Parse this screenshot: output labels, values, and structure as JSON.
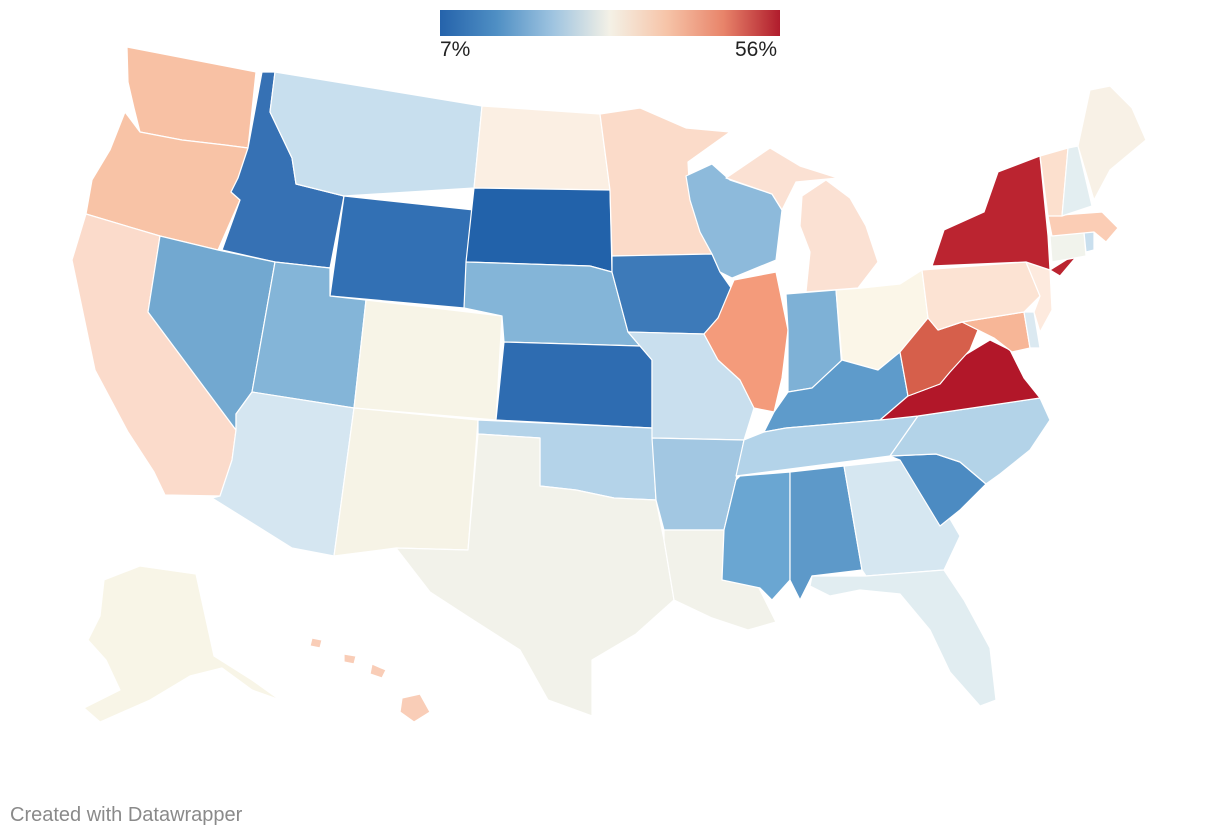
{
  "legend": {
    "min_label": "7%",
    "max_label": "56%",
    "min_value": 7,
    "max_value": 56,
    "colors": [
      "#2563ab",
      "#4f8fc4",
      "#9fc4e0",
      "#f4f1e6",
      "#f6c4a8",
      "#e8846a",
      "#b01c2c"
    ]
  },
  "credit": "Created with Datawrapper",
  "states": [
    {
      "id": "WA",
      "color": "#f8c1a4"
    },
    {
      "id": "OR",
      "color": "#f8c3a6"
    },
    {
      "id": "CA",
      "color": "#fbdbcb"
    },
    {
      "id": "ID",
      "color": "#3671b4"
    },
    {
      "id": "NV",
      "color": "#72a8d0"
    },
    {
      "id": "MT",
      "color": "#c8dfee"
    },
    {
      "id": "WY",
      "color": "#3270b4"
    },
    {
      "id": "UT",
      "color": "#84b5d8"
    },
    {
      "id": "AZ",
      "color": "#d5e6f1"
    },
    {
      "id": "CO",
      "color": "#f7f4e7"
    },
    {
      "id": "NM",
      "color": "#f6f3e6"
    },
    {
      "id": "ND",
      "color": "#fbefe3"
    },
    {
      "id": "SD",
      "color": "#2262aa"
    },
    {
      "id": "NE",
      "color": "#84b5d8"
    },
    {
      "id": "KS",
      "color": "#2e6cb1"
    },
    {
      "id": "OK",
      "color": "#b4d3e9"
    },
    {
      "id": "TX",
      "color": "#f2f2ea"
    },
    {
      "id": "MN",
      "color": "#fbdbc9"
    },
    {
      "id": "IA",
      "color": "#3d7ab9"
    },
    {
      "id": "MO",
      "color": "#c9dfee"
    },
    {
      "id": "AR",
      "color": "#a2c7e2"
    },
    {
      "id": "LA",
      "color": "#f2f2ea"
    },
    {
      "id": "WI",
      "color": "#8dbadb"
    },
    {
      "id": "IL",
      "color": "#f49b7b"
    },
    {
      "id": "MI",
      "color": "#fbe1d3"
    },
    {
      "id": "IN",
      "color": "#7eb1d6"
    },
    {
      "id": "OH",
      "color": "#fbf6e8"
    },
    {
      "id": "KY",
      "color": "#5e9bcb"
    },
    {
      "id": "TN",
      "color": "#b3d3e9"
    },
    {
      "id": "MS",
      "color": "#6aa6d2"
    },
    {
      "id": "AL",
      "color": "#5d99c9"
    },
    {
      "id": "GA",
      "color": "#d6e7f1"
    },
    {
      "id": "FL",
      "color": "#e1edf1"
    },
    {
      "id": "SC",
      "color": "#4c8bc2"
    },
    {
      "id": "NC",
      "color": "#b3d3e8"
    },
    {
      "id": "VA",
      "color": "#b21729"
    },
    {
      "id": "WV",
      "color": "#d65f4b"
    },
    {
      "id": "PA",
      "color": "#fce3d3"
    },
    {
      "id": "NY",
      "color": "#bb2430"
    },
    {
      "id": "MD",
      "color": "#f7b697"
    },
    {
      "id": "DE",
      "color": "#dbe9f1"
    },
    {
      "id": "NJ",
      "color": "#fdeade"
    },
    {
      "id": "CT",
      "color": "#f1f3ec"
    },
    {
      "id": "RI",
      "color": "#c9dfee"
    },
    {
      "id": "MA",
      "color": "#fbcdb5"
    },
    {
      "id": "VT",
      "color": "#fce0ce"
    },
    {
      "id": "NH",
      "color": "#e3eef1"
    },
    {
      "id": "ME",
      "color": "#f8f1e6"
    },
    {
      "id": "AK",
      "color": "#f8f5e7"
    },
    {
      "id": "HI",
      "color": "#f9cdb7"
    }
  ]
}
